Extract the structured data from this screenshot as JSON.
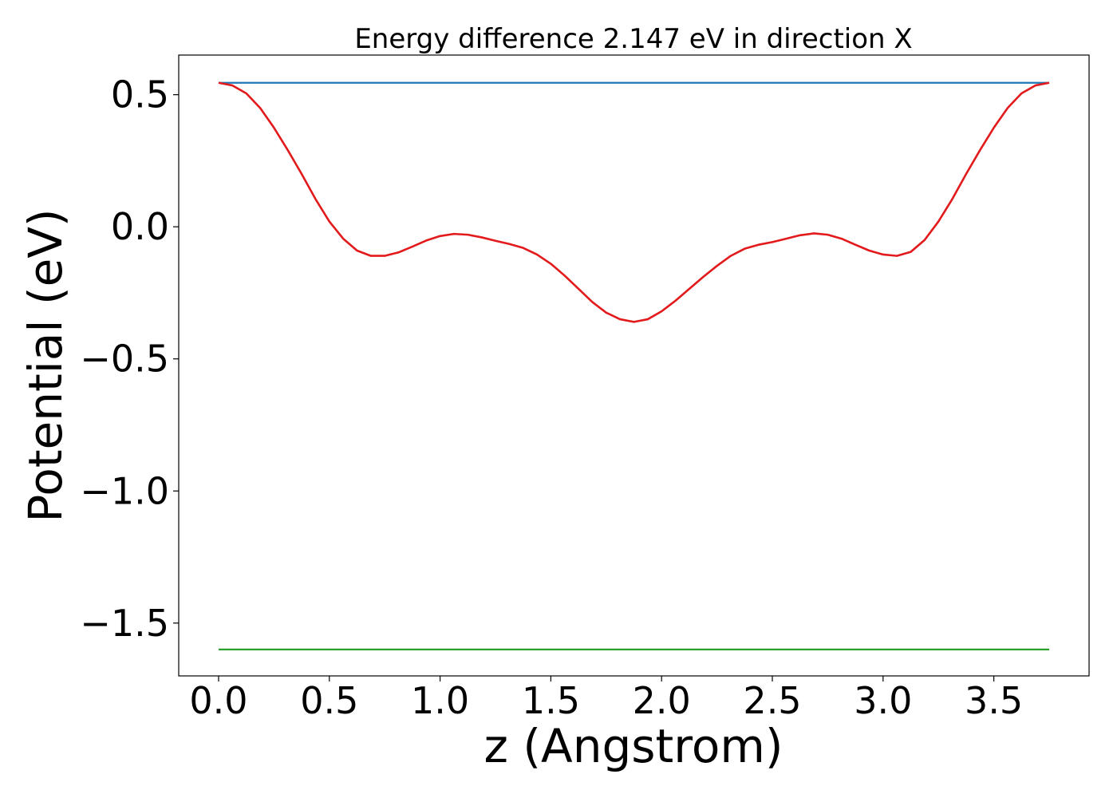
{
  "chart_data": {
    "type": "line",
    "title": "Energy difference 2.147 eV in direction X",
    "xlabel": "z (Angstrom)",
    "ylabel": "Potential (eV)",
    "xlim": [
      -0.18,
      3.93
    ],
    "ylim": [
      -1.7,
      0.65
    ],
    "grid": false,
    "x_ticks": [
      0.0,
      0.5,
      1.0,
      1.5,
      2.0,
      2.5,
      3.0,
      3.5
    ],
    "x_tick_labels": [
      "0.0",
      "0.5",
      "1.0",
      "1.5",
      "2.0",
      "2.5",
      "3.0",
      "3.5"
    ],
    "y_ticks": [
      0.5,
      0.0,
      -0.5,
      -1.0,
      -1.5
    ],
    "y_tick_labels": [
      "0.5",
      "0.0",
      "−0.5",
      "−1.0",
      "−1.5"
    ],
    "series": [
      {
        "color": "#1f77b4",
        "x": [
          0.0,
          3.75
        ],
        "values": [
          0.545,
          0.545
        ]
      },
      {
        "color": "#2ca02c",
        "x": [
          0.0,
          3.75
        ],
        "values": [
          -1.6,
          -1.6
        ]
      },
      {
        "color": "#e31a1c",
        "x": [
          0.0,
          0.0625,
          0.125,
          0.1875,
          0.25,
          0.3125,
          0.375,
          0.4375,
          0.5,
          0.5625,
          0.625,
          0.6875,
          0.75,
          0.8125,
          0.875,
          0.9375,
          1.0,
          1.0625,
          1.125,
          1.1875,
          1.25,
          1.3125,
          1.375,
          1.4375,
          1.5,
          1.5625,
          1.625,
          1.6875,
          1.75,
          1.8125,
          1.875,
          1.9375,
          2.0,
          2.0625,
          2.125,
          2.1875,
          2.25,
          2.3125,
          2.375,
          2.4375,
          2.5,
          2.5625,
          2.625,
          2.6875,
          2.75,
          2.8125,
          2.875,
          2.9375,
          3.0,
          3.0625,
          3.125,
          3.1875,
          3.25,
          3.3125,
          3.375,
          3.4375,
          3.5,
          3.5625,
          3.625,
          3.6875,
          3.75
        ],
        "values": [
          0.545,
          0.535,
          0.505,
          0.45,
          0.375,
          0.29,
          0.2,
          0.105,
          0.02,
          -0.045,
          -0.09,
          -0.11,
          -0.11,
          -0.097,
          -0.075,
          -0.052,
          -0.035,
          -0.027,
          -0.03,
          -0.04,
          -0.053,
          -0.065,
          -0.08,
          -0.105,
          -0.14,
          -0.185,
          -0.235,
          -0.285,
          -0.325,
          -0.35,
          -0.36,
          -0.35,
          -0.32,
          -0.28,
          -0.235,
          -0.19,
          -0.148,
          -0.11,
          -0.083,
          -0.068,
          -0.058,
          -0.045,
          -0.032,
          -0.025,
          -0.03,
          -0.045,
          -0.068,
          -0.09,
          -0.105,
          -0.11,
          -0.095,
          -0.05,
          0.02,
          0.105,
          0.2,
          0.29,
          0.375,
          0.45,
          0.505,
          0.535,
          0.545
        ]
      }
    ]
  }
}
